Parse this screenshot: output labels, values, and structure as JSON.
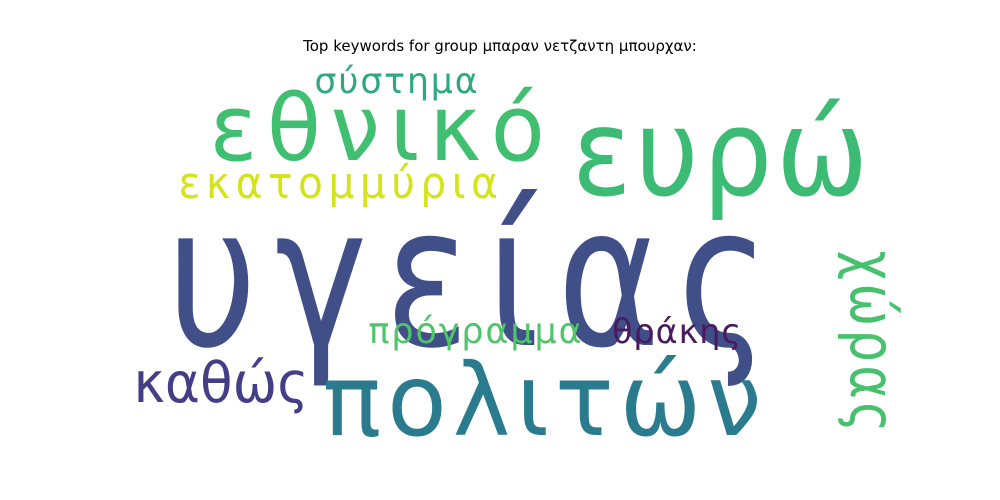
{
  "chart_data": {
    "type": "wordcloud",
    "title": "Top keywords for group μπαραν νετζαντη μπουρχαν:",
    "words": [
      {
        "text": "υγείας",
        "color": "#404f88"
      },
      {
        "text": "εθνικό",
        "color": "#3fbf6f"
      },
      {
        "text": "ευρώ",
        "color": "#3cbb75"
      },
      {
        "text": "πολιτών",
        "color": "#2b7b8e"
      },
      {
        "text": "σύστημα",
        "color": "#2fa87e"
      },
      {
        "text": "εκατομμύρια",
        "color": "#d4e31a"
      },
      {
        "text": "πρόγραμμα",
        "color": "#50c46a"
      },
      {
        "text": "θράκης",
        "color": "#4a1a5e"
      },
      {
        "text": "καθώς",
        "color": "#433e85"
      },
      {
        "text": "χώρας",
        "color": "#47c16e"
      }
    ]
  }
}
